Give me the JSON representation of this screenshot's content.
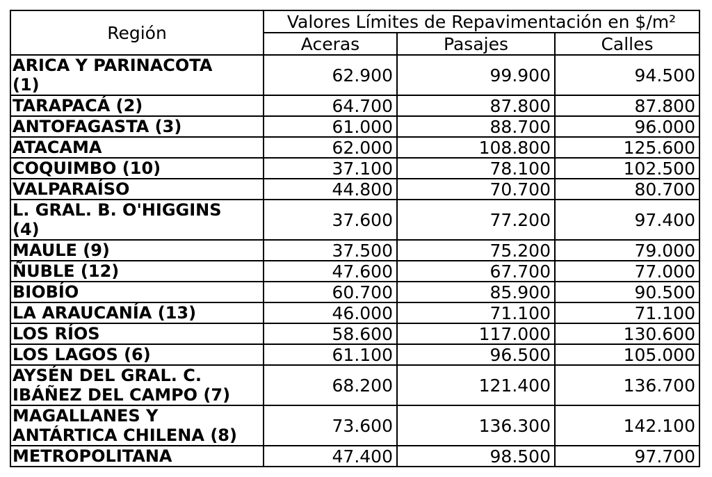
{
  "table": {
    "region_header": "Región",
    "group_header": "Valores Límites de Repavimentación en $/m²",
    "columns": [
      "Aceras",
      "Pasajes",
      "Calles"
    ],
    "rows": [
      {
        "region": "ARICA Y PARINACOTA\n(1)",
        "aceras": "62.900",
        "pasajes": "99.900",
        "calles": "94.500"
      },
      {
        "region": "TARAPACÁ (2)",
        "aceras": "64.700",
        "pasajes": "87.800",
        "calles": "87.800"
      },
      {
        "region": "ANTOFAGASTA (3)",
        "aceras": "61.000",
        "pasajes": "88.700",
        "calles": "96.000"
      },
      {
        "region": "ATACAMA",
        "aceras": "62.000",
        "pasajes": "108.800",
        "calles": "125.600"
      },
      {
        "region": "COQUIMBO (10)",
        "aceras": "37.100",
        "pasajes": "78.100",
        "calles": "102.500"
      },
      {
        "region": "VALPARAÍSO",
        "aceras": "44.800",
        "pasajes": "70.700",
        "calles": "80.700"
      },
      {
        "region": "L. GRAL. B. O'HIGGINS\n(4)",
        "aceras": "37.600",
        "pasajes": "77.200",
        "calles": "97.400"
      },
      {
        "region": "MAULE (9)",
        "aceras": "37.500",
        "pasajes": "75.200",
        "calles": "79.000"
      },
      {
        "region": "ÑUBLE (12)",
        "aceras": "47.600",
        "pasajes": "67.700",
        "calles": "77.000"
      },
      {
        "region": "BIOBÍO",
        "aceras": "60.700",
        "pasajes": "85.900",
        "calles": "90.500"
      },
      {
        "region": "LA ARAUCANÍA (13)",
        "aceras": "46.000",
        "pasajes": "71.100",
        "calles": "71.100"
      },
      {
        "region": "LOS RÍOS",
        "aceras": "58.600",
        "pasajes": "117.000",
        "calles": "130.600"
      },
      {
        "region": "LOS LAGOS (6)",
        "aceras": "61.100",
        "pasajes": "96.500",
        "calles": "105.000"
      },
      {
        "region": "AYSÉN DEL GRAL. C.\nIBÁÑEZ DEL CAMPO (7)",
        "aceras": "68.200",
        "pasajes": "121.400",
        "calles": "136.700"
      },
      {
        "region": "MAGALLANES Y\nANTÁRTICA CHILENA (8)",
        "aceras": "73.600",
        "pasajes": "136.300",
        "calles": "142.100"
      },
      {
        "region": "METROPOLITANA",
        "aceras": "47.400",
        "pasajes": "98.500",
        "calles": "97.700"
      }
    ]
  }
}
